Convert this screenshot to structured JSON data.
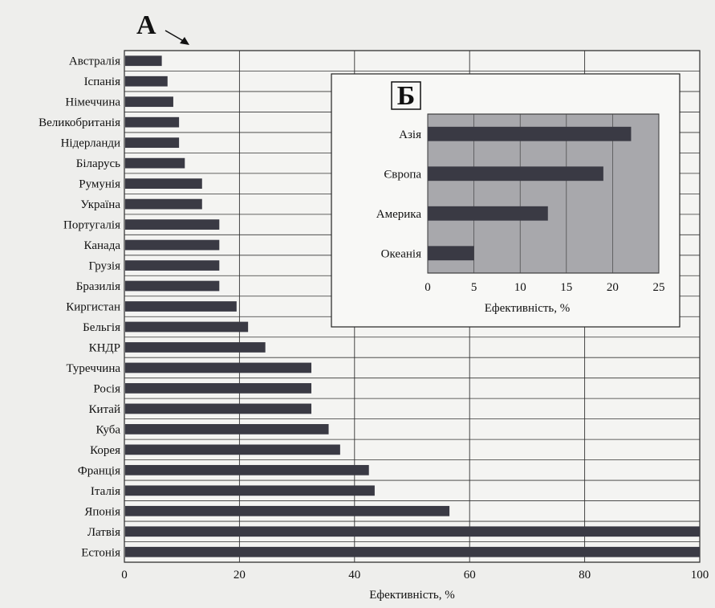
{
  "chart_data": [
    {
      "type": "bar",
      "orientation": "horizontal",
      "panel_label": "А",
      "xlabel": "Ефективність, %",
      "xlim": [
        0,
        100
      ],
      "xticks": [
        0,
        20,
        40,
        60,
        80,
        100
      ],
      "grid": true,
      "bar_color": "#3a3a44",
      "categories": [
        "Австралія",
        "Іспанія",
        "Німеччина",
        "Великобританія",
        "Нідерланди",
        "Біларусь",
        "Румунія",
        "Україна",
        "Португалія",
        "Канада",
        "Грузія",
        "Бразилія",
        "Киргистан",
        "Бельгія",
        "КНДР",
        "Туреччина",
        "Росія",
        "Китай",
        "Куба",
        "Корея",
        "Франція",
        "Італія",
        "Японія",
        "Латвія",
        "Естонія"
      ],
      "values": [
        6.5,
        7.5,
        8.5,
        9.5,
        9.5,
        10.5,
        13.5,
        13.5,
        16.5,
        16.5,
        16.5,
        16.5,
        19.5,
        21.5,
        24.5,
        32.5,
        32.5,
        32.5,
        35.5,
        37.5,
        42.5,
        43.5,
        56.5,
        100,
        100
      ]
    },
    {
      "type": "bar",
      "orientation": "horizontal",
      "panel_label": "Б",
      "xlabel": "Ефективність, %",
      "xlim": [
        0,
        25
      ],
      "xticks": [
        0,
        5,
        10,
        15,
        20,
        25
      ],
      "grid": true,
      "bar_color": "#3a3a44",
      "background": "#a8a8ac",
      "categories": [
        "Азія",
        "Європа",
        "Америка",
        "Океанія"
      ],
      "values": [
        22,
        19,
        13,
        5
      ]
    }
  ]
}
